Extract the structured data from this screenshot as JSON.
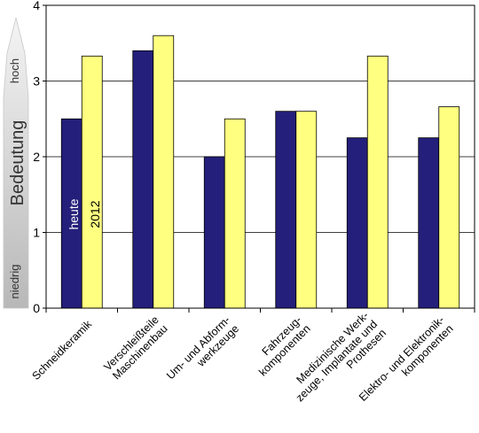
{
  "chart_data": {
    "type": "bar",
    "categories": [
      [
        "Schneidkeramik"
      ],
      [
        "Verschleißteile",
        "Maschinenbau"
      ],
      [
        "Um- und Abform-",
        "werkzeuge"
      ],
      [
        "Fahrzeug-",
        "komponenten"
      ],
      [
        "Medizinische Werk-",
        "zeuge, Implantate und",
        "Prothesen"
      ],
      [
        "Elektro- und Elektronik-",
        "komponenten"
      ]
    ],
    "series": [
      {
        "name": "heute",
        "values": [
          2.5,
          3.4,
          2.0,
          2.6,
          2.25,
          2.25
        ],
        "color": "#241f7a"
      },
      {
        "name": "2012",
        "values": [
          3.33,
          3.6,
          2.5,
          2.6,
          3.33,
          2.66
        ],
        "color": "#ffff80"
      }
    ],
    "ylim": [
      0,
      4
    ],
    "yticks": [
      "0",
      "1",
      "2",
      "3",
      "4"
    ],
    "ylabel": "Bedeutung",
    "ylabel_high": "hoch",
    "ylabel_low": "niedrig",
    "grid": true
  }
}
